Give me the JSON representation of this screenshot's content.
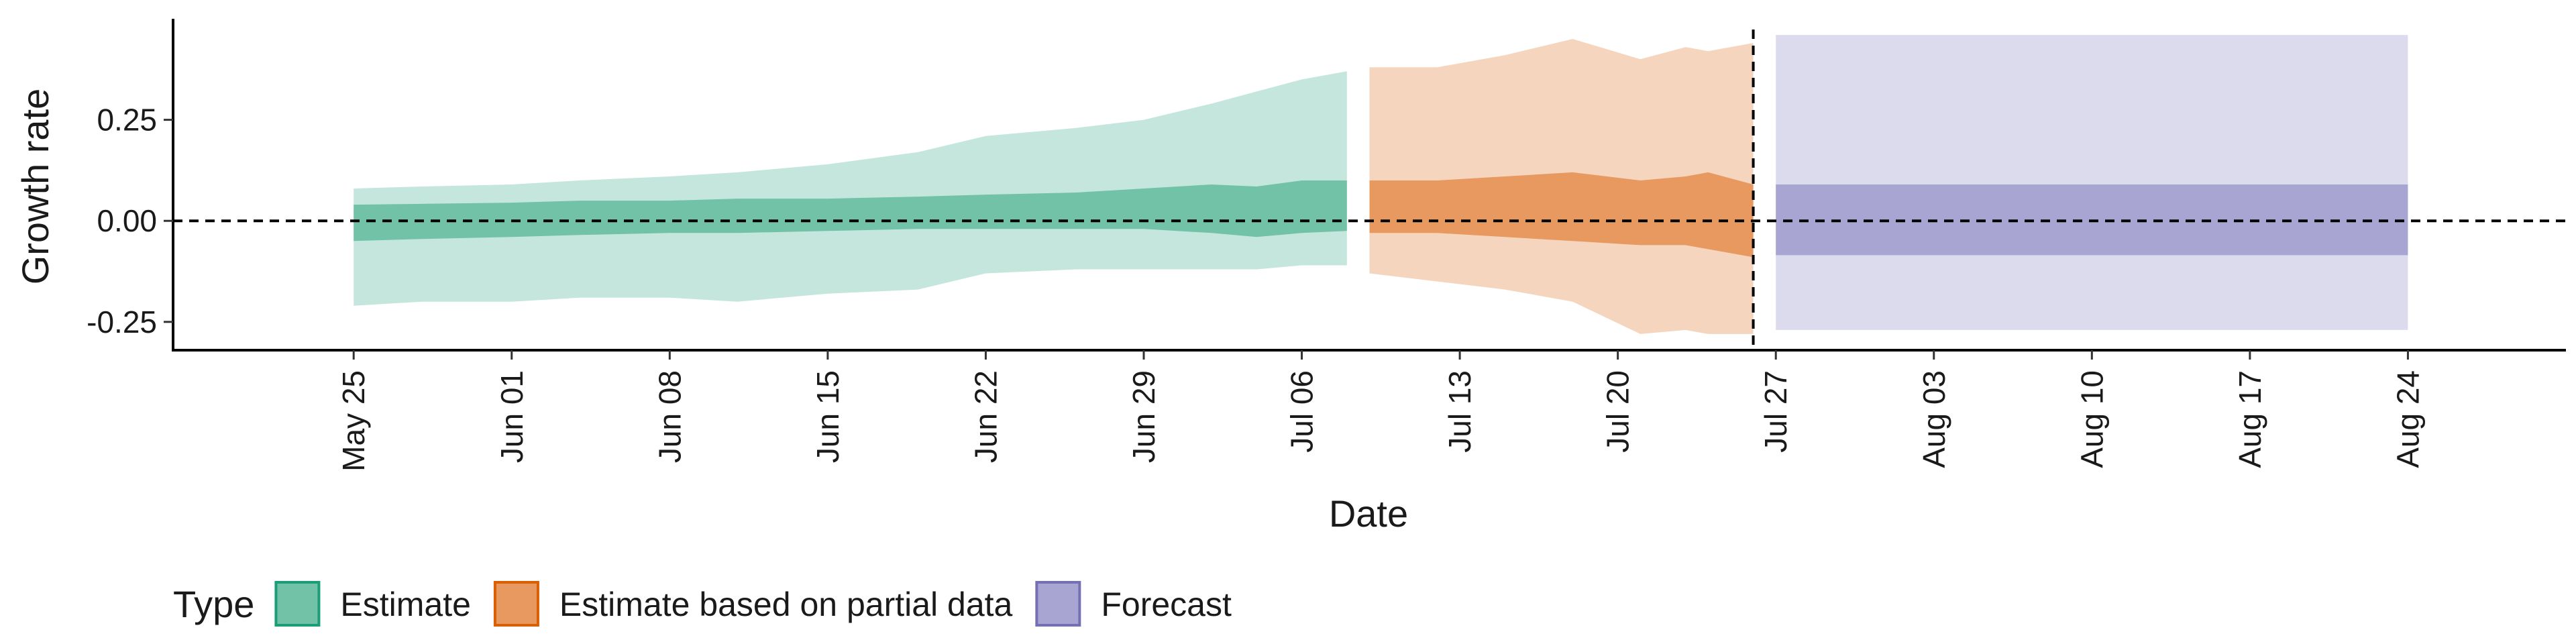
{
  "chart_data": {
    "type": "area",
    "xlabel": "Date",
    "ylabel": "Growth rate",
    "ylim": [
      -0.32,
      0.5
    ],
    "xlim": [
      "2020-05-17",
      "2020-08-31"
    ],
    "grid": false,
    "reference_lines": [
      {
        "axis": "y",
        "value": 0,
        "style": "dashed"
      },
      {
        "axis": "x",
        "value": "2020-07-26",
        "style": "dashed"
      }
    ],
    "x_ticks": [
      {
        "date": "2020-05-25",
        "label": "May 25"
      },
      {
        "date": "2020-06-01",
        "label": "Jun 01"
      },
      {
        "date": "2020-06-08",
        "label": "Jun 08"
      },
      {
        "date": "2020-06-15",
        "label": "Jun 15"
      },
      {
        "date": "2020-06-22",
        "label": "Jun 22"
      },
      {
        "date": "2020-06-29",
        "label": "Jun 29"
      },
      {
        "date": "2020-07-06",
        "label": "Jul 06"
      },
      {
        "date": "2020-07-13",
        "label": "Jul 13"
      },
      {
        "date": "2020-07-20",
        "label": "Jul 20"
      },
      {
        "date": "2020-07-27",
        "label": "Jul 27"
      },
      {
        "date": "2020-08-03",
        "label": "Aug 03"
      },
      {
        "date": "2020-08-10",
        "label": "Aug 10"
      },
      {
        "date": "2020-08-17",
        "label": "Aug 17"
      },
      {
        "date": "2020-08-24",
        "label": "Aug 24"
      }
    ],
    "y_ticks": [
      {
        "value": 0.25,
        "label": "0.25"
      },
      {
        "value": 0,
        "label": "0.00"
      },
      {
        "value": -0.25,
        "label": "-0.25"
      }
    ],
    "legend": {
      "title": "Type",
      "position": "bottom",
      "entries": [
        {
          "label": "Estimate",
          "fill": "#72c2a8",
          "border": "#1b9e77"
        },
        {
          "label": "Estimate based on partial data",
          "fill": "#e8995f",
          "border": "#d95f02"
        },
        {
          "label": "Forecast",
          "fill": "#a8a5d3",
          "border": "#7570b3"
        }
      ]
    },
    "series": [
      {
        "type_label": "Estimate",
        "outer_color": "#c5e6dc",
        "inner_color": "#72c2a8",
        "points": [
          {
            "x": "2020-05-25",
            "lo90": -0.21,
            "lo50": -0.05,
            "hi50": 0.04,
            "hi90": 0.08
          },
          {
            "x": "2020-05-28",
            "lo90": -0.2,
            "lo50": -0.045,
            "hi50": 0.042,
            "hi90": 0.085
          },
          {
            "x": "2020-06-01",
            "lo90": -0.2,
            "lo50": -0.04,
            "hi50": 0.045,
            "hi90": 0.09
          },
          {
            "x": "2020-06-04",
            "lo90": -0.19,
            "lo50": -0.035,
            "hi50": 0.05,
            "hi90": 0.1
          },
          {
            "x": "2020-06-08",
            "lo90": -0.19,
            "lo50": -0.03,
            "hi50": 0.05,
            "hi90": 0.11
          },
          {
            "x": "2020-06-11",
            "lo90": -0.2,
            "lo50": -0.03,
            "hi50": 0.055,
            "hi90": 0.12
          },
          {
            "x": "2020-06-15",
            "lo90": -0.18,
            "lo50": -0.025,
            "hi50": 0.055,
            "hi90": 0.14
          },
          {
            "x": "2020-06-19",
            "lo90": -0.17,
            "lo50": -0.02,
            "hi50": 0.06,
            "hi90": 0.17
          },
          {
            "x": "2020-06-22",
            "lo90": -0.13,
            "lo50": -0.02,
            "hi50": 0.065,
            "hi90": 0.21
          },
          {
            "x": "2020-06-26",
            "lo90": -0.12,
            "lo50": -0.02,
            "hi50": 0.07,
            "hi90": 0.23
          },
          {
            "x": "2020-06-29",
            "lo90": -0.12,
            "lo50": -0.02,
            "hi50": 0.08,
            "hi90": 0.25
          },
          {
            "x": "2020-07-02",
            "lo90": -0.12,
            "lo50": -0.03,
            "hi50": 0.09,
            "hi90": 0.29
          },
          {
            "x": "2020-07-04",
            "lo90": -0.12,
            "lo50": -0.04,
            "hi50": 0.085,
            "hi90": 0.32
          },
          {
            "x": "2020-07-06",
            "lo90": -0.11,
            "lo50": -0.03,
            "hi50": 0.1,
            "hi90": 0.35
          },
          {
            "x": "2020-07-08",
            "lo90": -0.11,
            "lo50": -0.025,
            "hi50": 0.1,
            "hi90": 0.37
          }
        ]
      },
      {
        "type_label": "Estimate based on partial data",
        "outer_color": "#f5d5bd",
        "inner_color": "#e8995f",
        "points": [
          {
            "x": "2020-07-09",
            "lo90": -0.13,
            "lo50": -0.03,
            "hi50": 0.1,
            "hi90": 0.38
          },
          {
            "x": "2020-07-12",
            "lo90": -0.15,
            "lo50": -0.03,
            "hi50": 0.1,
            "hi90": 0.38
          },
          {
            "x": "2020-07-15",
            "lo90": -0.17,
            "lo50": -0.04,
            "hi50": 0.11,
            "hi90": 0.41
          },
          {
            "x": "2020-07-18",
            "lo90": -0.2,
            "lo50": -0.05,
            "hi50": 0.12,
            "hi90": 0.45
          },
          {
            "x": "2020-07-21",
            "lo90": -0.28,
            "lo50": -0.06,
            "hi50": 0.1,
            "hi90": 0.4
          },
          {
            "x": "2020-07-23",
            "lo90": -0.27,
            "lo50": -0.06,
            "hi50": 0.11,
            "hi90": 0.43
          },
          {
            "x": "2020-07-24",
            "lo90": -0.28,
            "lo50": -0.07,
            "hi50": 0.12,
            "hi90": 0.42
          },
          {
            "x": "2020-07-26",
            "lo90": -0.28,
            "lo50": -0.09,
            "hi50": 0.09,
            "hi90": 0.44
          }
        ]
      },
      {
        "type_label": "Forecast",
        "outer_color": "#dcdbee",
        "inner_color": "#a8a5d3",
        "points": [
          {
            "x": "2020-07-27",
            "lo90": -0.27,
            "lo50": -0.085,
            "hi50": 0.09,
            "hi90": 0.46
          },
          {
            "x": "2020-08-24",
            "lo90": -0.27,
            "lo50": -0.085,
            "hi50": 0.09,
            "hi90": 0.46
          }
        ]
      }
    ]
  }
}
